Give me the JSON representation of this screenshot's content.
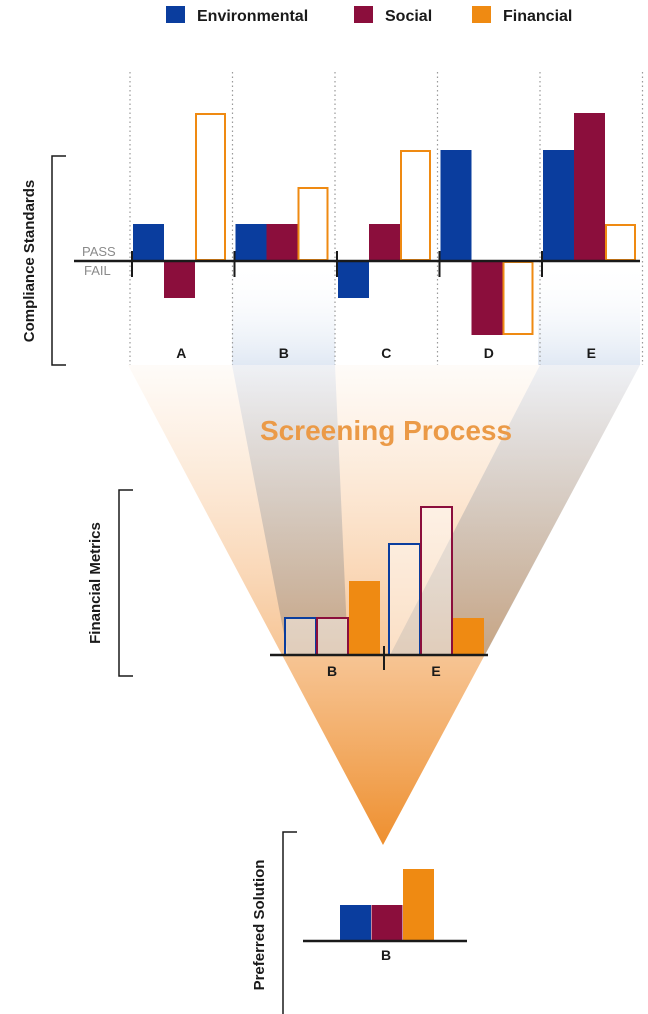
{
  "legend": {
    "items": [
      {
        "label": "Environmental",
        "color": "#0a3d9e"
      },
      {
        "label": "Social",
        "color": "#8b0e3c"
      },
      {
        "label": "Financial",
        "color": "#ef8a12"
      }
    ]
  },
  "compliance": {
    "axis_label": "Compliance Standards",
    "pass_label": "PASS",
    "fail_label": "FAIL",
    "options": [
      {
        "label": "A",
        "environmental": 1,
        "social": -1,
        "financial": 4,
        "financial_style": "outline"
      },
      {
        "label": "B",
        "environmental": 1,
        "social": 1,
        "financial": 2,
        "financial_style": "outline"
      },
      {
        "label": "C",
        "environmental": -1,
        "social": 1,
        "financial": 3,
        "financial_style": "outline"
      },
      {
        "label": "D",
        "environmental": 3,
        "social": -2,
        "financial": -2,
        "financial_style": "outline"
      },
      {
        "label": "E",
        "environmental": 3,
        "social": 4,
        "financial": 1,
        "financial_style": "outline"
      }
    ]
  },
  "screening": {
    "title": "Screening Process"
  },
  "financial_metrics": {
    "axis_label": "Financial Metrics",
    "options": [
      {
        "label": "B",
        "environmental": 1,
        "social": 1,
        "financial": 2
      },
      {
        "label": "E",
        "environmental": 3,
        "social": 4,
        "financial": 1
      }
    ]
  },
  "preferred": {
    "axis_label": "Preferred Solution",
    "option": {
      "label": "B",
      "environmental": 1,
      "social": 1,
      "financial": 2
    }
  },
  "colors": {
    "environmental": "#0a3d9e",
    "social": "#8b0e3c",
    "financial": "#ef8a12",
    "title_orange": "#eb9a47",
    "axis": "#1a1a1a",
    "grid": "#9a9a9a"
  }
}
